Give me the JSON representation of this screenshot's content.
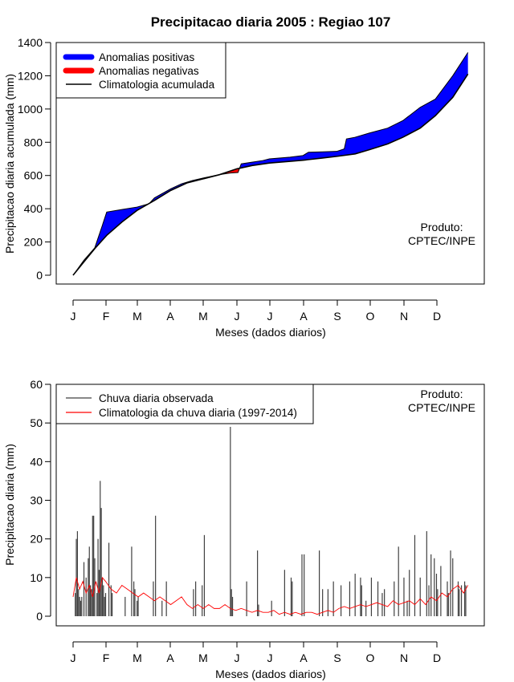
{
  "title": "Precipitacao diaria 2005 : Regiao 107",
  "months": [
    "J",
    "F",
    "M",
    "A",
    "M",
    "J",
    "J",
    "A",
    "S",
    "O",
    "N",
    "D"
  ],
  "produto": {
    "line1": "Produto:",
    "line2": "CPTEC/INPE"
  },
  "colors": {
    "positive": "#0000ff",
    "negative": "#ff0000",
    "clim": "#000000",
    "obs": "#404040",
    "clim_daily": "#ff0000"
  },
  "chart_data": [
    {
      "type": "area",
      "ylabel": "Precipitacao diaria acumulada (mm)",
      "xlabel": "Meses (dados diarios)",
      "ylim": [
        0,
        1400
      ],
      "yticks": [
        0,
        200,
        400,
        600,
        800,
        1000,
        1200,
        1400
      ],
      "xlim": [
        0,
        365
      ],
      "legend": [
        {
          "label": "Anomalias positivas",
          "kind": "positive"
        },
        {
          "label": "Anomalias negativas",
          "kind": "negative"
        },
        {
          "label": "Climatologia acumulada",
          "kind": "clim"
        }
      ],
      "climatology_accumulated": {
        "day": [
          0,
          10,
          20,
          31,
          45,
          59,
          75,
          90,
          105,
          120,
          135,
          151,
          165,
          181,
          200,
          212,
          230,
          243,
          260,
          273,
          290,
          304,
          320,
          334,
          350,
          364
        ],
        "mm": [
          0,
          80,
          160,
          240,
          320,
          390,
          450,
          510,
          555,
          580,
          605,
          640,
          660,
          675,
          685,
          692,
          705,
          715,
          730,
          755,
          790,
          830,
          885,
          960,
          1070,
          1210
        ]
      },
      "observed_accumulated": {
        "day": [
          0,
          10,
          20,
          27,
          31,
          45,
          59,
          70,
          75,
          90,
          100,
          110,
          120,
          135,
          145,
          152,
          155,
          165,
          175,
          181,
          200,
          212,
          217,
          230,
          243,
          250,
          252,
          260,
          273,
          290,
          304,
          320,
          334,
          350,
          364
        ],
        "mm": [
          0,
          90,
          165,
          300,
          380,
          395,
          410,
          430,
          465,
          520,
          550,
          570,
          585,
          605,
          615,
          618,
          670,
          680,
          690,
          700,
          710,
          720,
          740,
          742,
          745,
          760,
          820,
          830,
          855,
          885,
          930,
          1010,
          1060,
          1200,
          1340
        ]
      }
    },
    {
      "type": "bar",
      "ylabel": "Precipitacao diaria (mm)",
      "xlabel": "Meses (dados diarios)",
      "ylim": [
        0,
        60
      ],
      "yticks": [
        0,
        10,
        20,
        30,
        40,
        50,
        60
      ],
      "xlim": [
        0,
        365
      ],
      "legend": [
        {
          "label": "Chuva diaria observada",
          "kind": "obs"
        },
        {
          "label": "Climatologia da chuva diaria (1997-2014)",
          "kind": "clim_daily"
        }
      ],
      "observed_peaks": {
        "day": [
          2,
          3,
          4,
          5,
          6,
          7,
          8,
          10,
          12,
          14,
          15,
          16,
          17,
          18,
          19,
          20,
          22,
          23,
          24,
          25,
          26,
          27,
          28,
          29,
          30,
          33,
          35,
          36,
          48,
          54,
          56,
          57,
          59,
          60,
          74,
          76,
          82,
          86,
          111,
          113,
          119,
          121,
          145,
          146,
          147,
          160,
          170,
          171,
          183,
          195,
          201,
          202,
          211,
          213,
          227,
          230,
          235,
          240,
          247,
          255,
          260,
          265,
          266,
          270,
          275,
          281,
          285,
          287,
          296,
          300,
          305,
          308,
          310,
          315,
          320,
          326,
          328,
          330,
          333,
          335,
          336,
          339,
          345,
          346,
          348,
          350,
          355,
          356,
          358,
          361,
          362
        ],
        "mm": [
          6,
          20,
          22,
          7,
          5,
          4,
          5,
          14,
          10,
          15,
          18,
          8,
          7,
          26,
          26,
          15,
          6,
          20,
          12,
          35,
          28,
          10,
          8,
          5,
          6,
          19,
          8,
          6,
          5,
          18,
          9,
          7,
          4,
          5,
          9,
          26,
          4,
          9,
          7,
          9,
          8,
          21,
          49,
          7,
          5,
          9,
          17,
          3,
          4,
          12,
          10,
          9,
          16,
          16,
          17,
          7,
          7,
          9,
          8,
          9,
          11,
          10,
          8,
          4,
          10,
          9,
          6,
          7,
          9,
          18,
          10,
          4,
          12,
          21,
          10,
          22,
          8,
          16,
          15,
          11,
          7,
          13,
          9,
          6,
          17,
          15,
          9,
          7,
          8,
          9,
          8
        ]
      },
      "climatology_daily": {
        "day": [
          0,
          3,
          6,
          9,
          12,
          15,
          18,
          21,
          24,
          27,
          30,
          35,
          40,
          45,
          50,
          55,
          60,
          65,
          70,
          75,
          80,
          85,
          90,
          95,
          100,
          105,
          110,
          115,
          120,
          125,
          130,
          135,
          140,
          145,
          150,
          155,
          160,
          165,
          170,
          175,
          180,
          185,
          190,
          195,
          200,
          205,
          210,
          215,
          220,
          225,
          230,
          235,
          240,
          245,
          250,
          255,
          260,
          265,
          270,
          275,
          280,
          285,
          290,
          295,
          300,
          305,
          310,
          315,
          320,
          325,
          330,
          335,
          340,
          345,
          350,
          355,
          360,
          364
        ],
        "mm": [
          5,
          10,
          7,
          9,
          6,
          8,
          5,
          9,
          6,
          10,
          9,
          7,
          6,
          8,
          7,
          6,
          5,
          6,
          5,
          4,
          5,
          4,
          3,
          4,
          5,
          3,
          2,
          3,
          2,
          3,
          2,
          2,
          3,
          2,
          1.5,
          2,
          1.5,
          1,
          1.5,
          1,
          1,
          1.5,
          0.5,
          1,
          0.5,
          1,
          0.5,
          1,
          1,
          0.5,
          1,
          1.5,
          1,
          2,
          2.5,
          2,
          2.5,
          3,
          2.5,
          3,
          3.5,
          3,
          2.5,
          4,
          3,
          3.5,
          4,
          3,
          4.5,
          3,
          5,
          4,
          6,
          5,
          7,
          8,
          6,
          8
        ]
      }
    }
  ]
}
